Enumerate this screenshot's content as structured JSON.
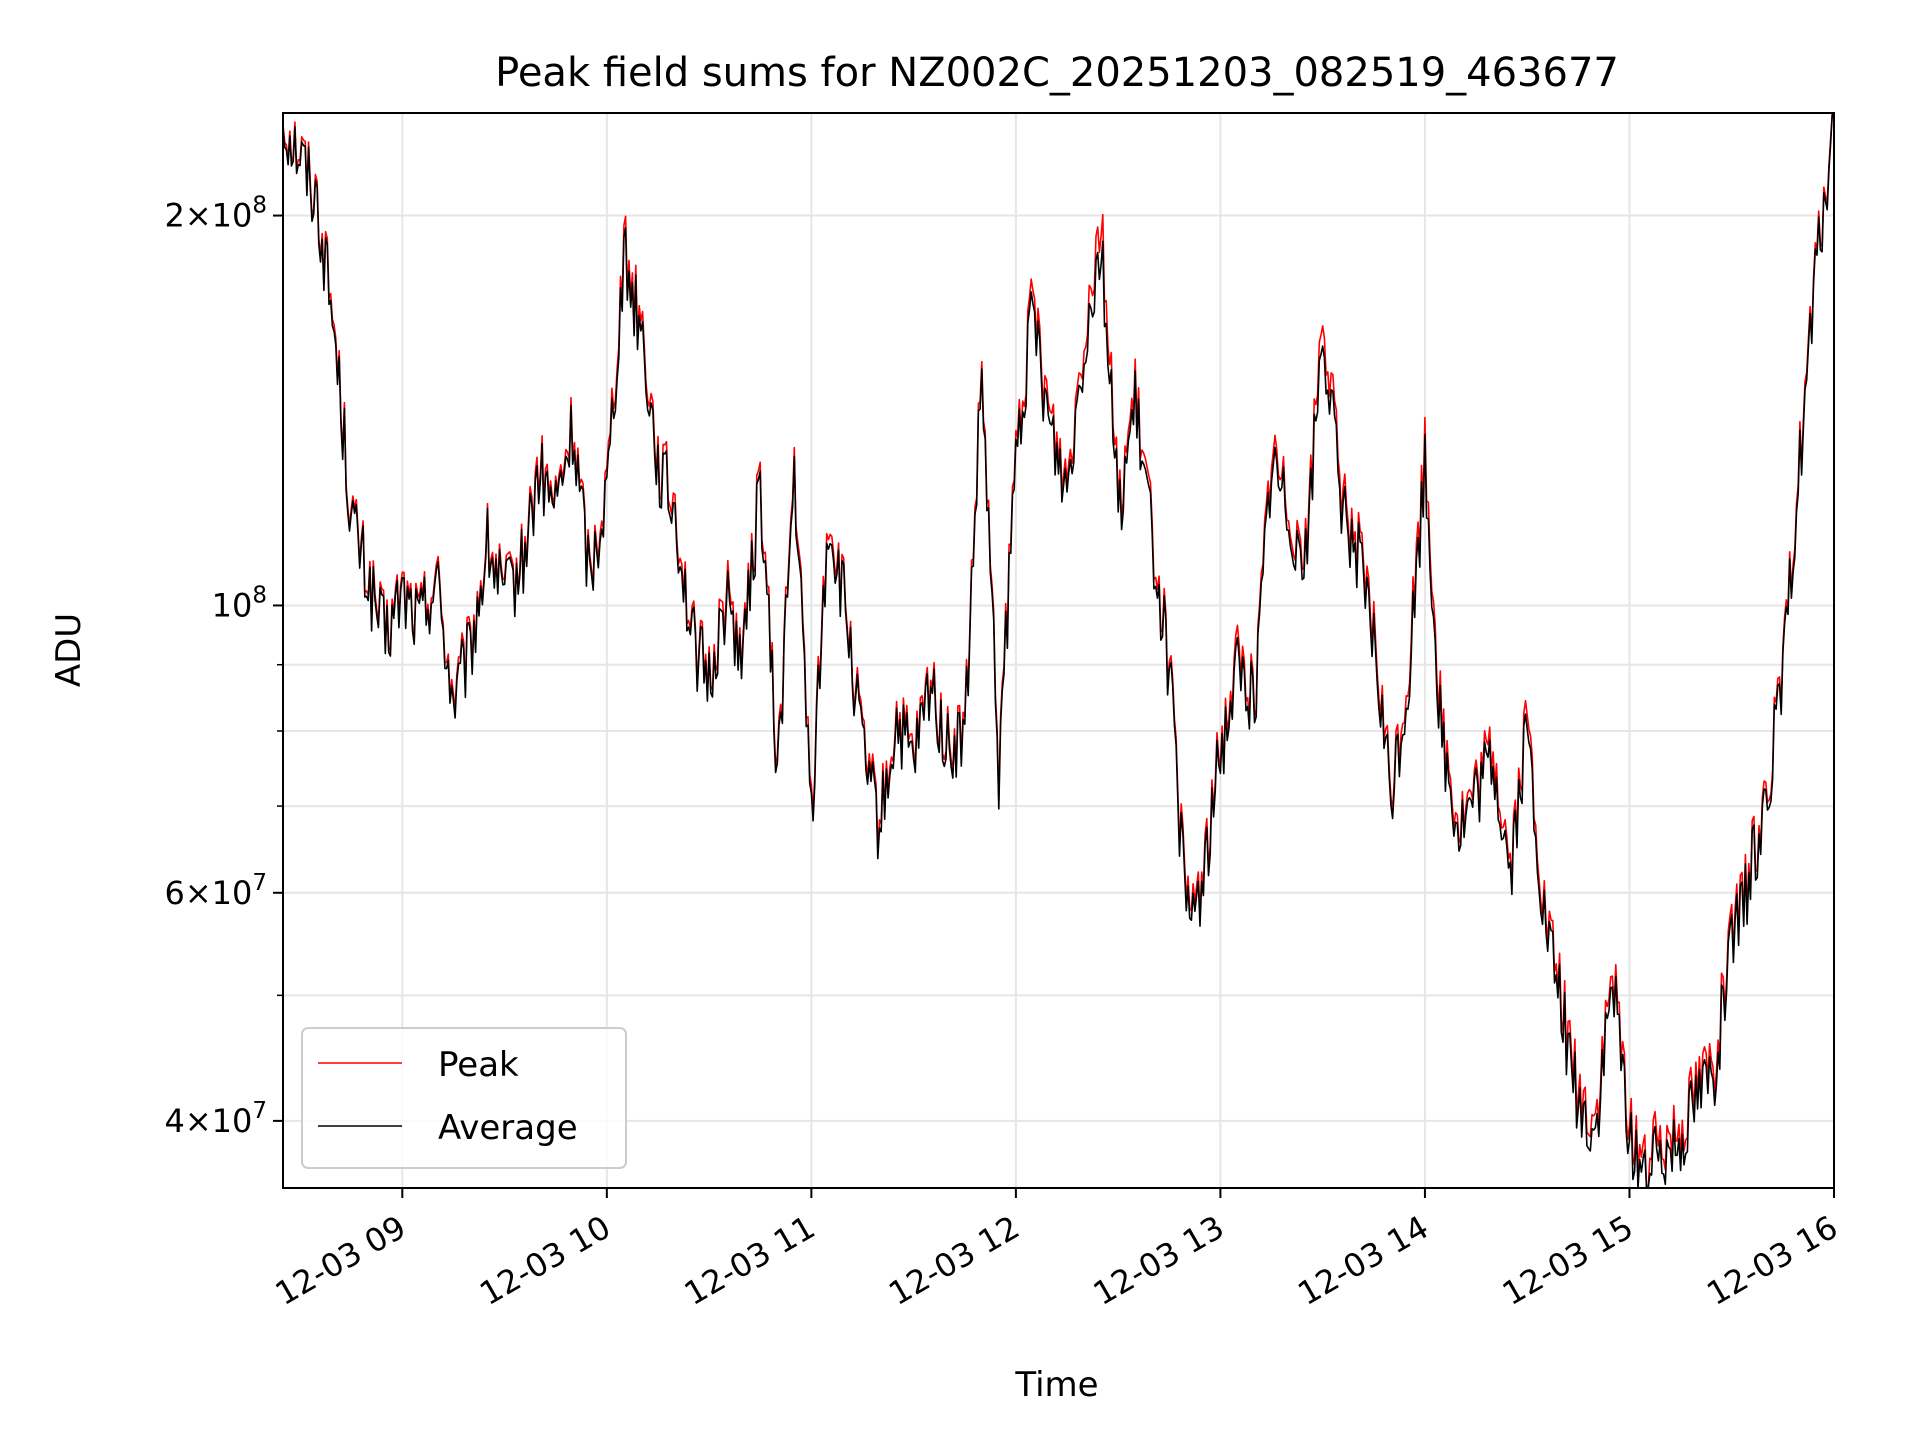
{
  "chart_data": {
    "type": "line",
    "title": "Peak field sums for NZ002C_20251203_082519_463677",
    "xlabel": "Time",
    "ylabel": "ADU",
    "xscale": "time",
    "yscale": "log",
    "x_range": [
      "2025-12-03 08:25",
      "2025-12-03 16:00"
    ],
    "ylim": [
      35500000,
      240000000
    ],
    "grid": true,
    "legend_location": "lower-left",
    "x_ticks": [
      "12-03 09",
      "12-03 10",
      "12-03 11",
      "12-03 12",
      "12-03 13",
      "12-03 14",
      "12-03 15",
      "12-03 16"
    ],
    "x_tick_values": [
      "2025-12-03 09:00",
      "2025-12-03 10:00",
      "2025-12-03 11:00",
      "2025-12-03 12:00",
      "2025-12-03 13:00",
      "2025-12-03 14:00",
      "2025-12-03 15:00",
      "2025-12-03 16:00"
    ],
    "y_ticks": [
      {
        "value": 40000000,
        "mantissa": "4",
        "exponent": "7"
      },
      {
        "value": 60000000,
        "mantissa": "6",
        "exponent": "7"
      },
      {
        "value": 100000000,
        "mantissa": "",
        "exponent": "8"
      },
      {
        "value": 200000000,
        "mantissa": "2",
        "exponent": "8"
      }
    ],
    "y_minor_ticks": [
      50000000,
      70000000,
      80000000,
      90000000
    ],
    "x": [
      "08:25",
      "08:30",
      "08:35",
      "08:40",
      "08:45",
      "08:50",
      "08:55",
      "09:00",
      "09:05",
      "09:10",
      "09:15",
      "09:20",
      "09:25",
      "09:30",
      "09:35",
      "09:40",
      "09:45",
      "09:50",
      "09:55",
      "10:00",
      "10:05",
      "10:08",
      "10:10",
      "10:15",
      "10:20",
      "10:25",
      "10:30",
      "10:35",
      "10:40",
      "10:45",
      "10:50",
      "10:55",
      "11:00",
      "11:05",
      "11:10",
      "11:15",
      "11:20",
      "11:25",
      "11:30",
      "11:35",
      "11:40",
      "11:45",
      "11:50",
      "11:55",
      "12:00",
      "12:05",
      "12:10",
      "12:15",
      "12:20",
      "12:25",
      "12:30",
      "12:35",
      "12:40",
      "12:45",
      "12:50",
      "12:55",
      "13:00",
      "13:05",
      "13:10",
      "13:15",
      "13:20",
      "13:25",
      "13:30",
      "13:35",
      "13:40",
      "13:45",
      "13:50",
      "13:55",
      "14:00",
      "14:05",
      "14:10",
      "14:15",
      "14:20",
      "14:25",
      "14:30",
      "14:35",
      "14:40",
      "14:45",
      "14:50",
      "14:55",
      "15:00",
      "15:05",
      "15:10",
      "15:15",
      "15:20",
      "15:25",
      "15:30",
      "15:35",
      "15:40",
      "15:45",
      "15:50",
      "15:55",
      "16:00"
    ],
    "series": [
      {
        "name": "Peak",
        "color": "#ff0000",
        "values": [
          238000000,
          225000000,
          207000000,
          165000000,
          118000000,
          105000000,
          95000000,
          103000000,
          98000000,
          106000000,
          85000000,
          93000000,
          112000000,
          102000000,
          108000000,
          128000000,
          120000000,
          138000000,
          106000000,
          125000000,
          190000000,
          175000000,
          168000000,
          130000000,
          120000000,
          95000000,
          88000000,
          103000000,
          92000000,
          126000000,
          75000000,
          128000000,
          70000000,
          118000000,
          100000000,
          78000000,
          68000000,
          82000000,
          76000000,
          88000000,
          78000000,
          80000000,
          152000000,
          75000000,
          132000000,
          172000000,
          140000000,
          125000000,
          164000000,
          202000000,
          120000000,
          145000000,
          115000000,
          90000000,
          58000000,
          62000000,
          78000000,
          92000000,
          85000000,
          132000000,
          120000000,
          110000000,
          170000000,
          125000000,
          112000000,
          95000000,
          72000000,
          88000000,
          132000000,
          80000000,
          68000000,
          72000000,
          78000000,
          63000000,
          82000000,
          58000000,
          50000000,
          42000000,
          40000000,
          52000000,
          40000000,
          37000000,
          39000000,
          40000000,
          43000000,
          45000000,
          55000000,
          62000000,
          72000000,
          88000000,
          132000000,
          185000000,
          240000000
        ]
      },
      {
        "name": "Average",
        "color": "#000000",
        "values": [
          236000000,
          223000000,
          205000000,
          163000000,
          117000000,
          104000000,
          94000000,
          102000000,
          97000000,
          105000000,
          84000000,
          92000000,
          111000000,
          101000000,
          107000000,
          126000000,
          119000000,
          136000000,
          105000000,
          123000000,
          186000000,
          172000000,
          165000000,
          128000000,
          118000000,
          94000000,
          87000000,
          101000000,
          91000000,
          124000000,
          74000000,
          126000000,
          69000000,
          116000000,
          99000000,
          77000000,
          67000000,
          81000000,
          75000000,
          87000000,
          77000000,
          79000000,
          150000000,
          74000000,
          130000000,
          168000000,
          137000000,
          123000000,
          160000000,
          192000000,
          118000000,
          142000000,
          113000000,
          89000000,
          57000000,
          61000000,
          77000000,
          90000000,
          84000000,
          129000000,
          118000000,
          108000000,
          164000000,
          122000000,
          110000000,
          93000000,
          71000000,
          86000000,
          128000000,
          78000000,
          67000000,
          71000000,
          76000000,
          62000000,
          80000000,
          57000000,
          49000000,
          41000000,
          39000000,
          51000000,
          39000000,
          36000000,
          38000000,
          39000000,
          42000000,
          44000000,
          54000000,
          61000000,
          71000000,
          87000000,
          130000000,
          183000000,
          238000000
        ]
      }
    ]
  }
}
